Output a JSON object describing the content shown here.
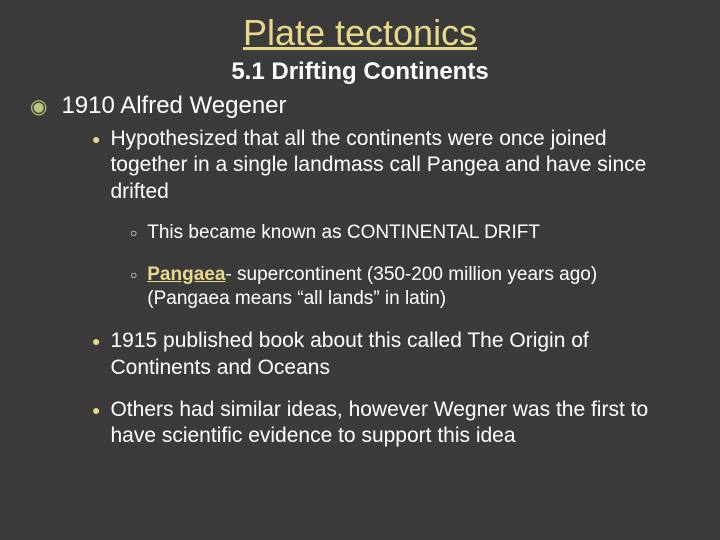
{
  "colors": {
    "background": "#3b3b3b",
    "text": "#ffffff",
    "accent": "#e8d98a",
    "bullet_l1": "#b7c77b",
    "bullet_l2": "#e8d98a",
    "bullet_l3": "#ffffff"
  },
  "title": "Plate tectonics",
  "subtitle": "5.1 Drifting Continents",
  "l1_item": "1910 Alfred Wegener",
  "l2_items": {
    "a": "Hypothesized that all the continents were once joined together in a single landmass call Pangea and have since drifted",
    "b": "1915 published book about this called The Origin of Continents and Oceans",
    "c": "Others had similar ideas, however Wegner was the first to have scientific evidence to support this idea"
  },
  "l3_items": {
    "a": "This became known as CONTINENTAL DRIFT",
    "b_prefix": "Pangaea",
    "b_rest": "- supercontinent (350-200 million years ago) (Pangaea means “all lands” in latin)"
  }
}
